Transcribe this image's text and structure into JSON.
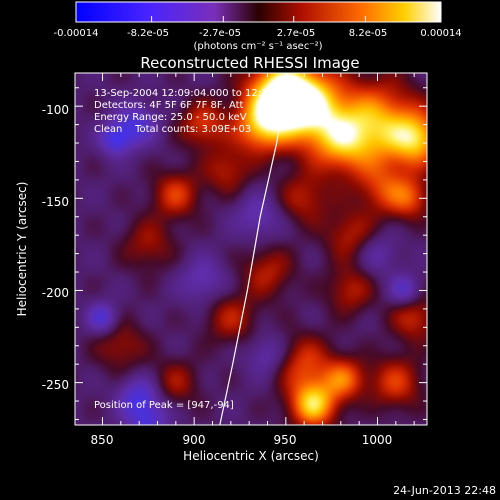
{
  "colorbar": {
    "tick_labels": [
      "-0.00014",
      "-8.2e-05",
      "-2.7e-05",
      "2.7e-05",
      "8.2e-05",
      "0.00014"
    ],
    "tick_values": [
      -0.00014,
      -8.2e-05,
      -2.7e-05,
      2.7e-05,
      8.2e-05,
      0.00014
    ],
    "unit_label": "(photons cm⁻² s⁻¹ asec⁻²)",
    "range": [
      -0.00014,
      0.00014
    ]
  },
  "chart_data": {
    "type": "heatmap",
    "title": "Reconstructed RHESSI Image",
    "xlabel": "Heliocentric X (arcsec)",
    "ylabel": "Heliocentric Y (arcsec)",
    "xlim": [
      835,
      1027
    ],
    "ylim": [
      -273,
      -82
    ],
    "x_ticks": [
      850,
      900,
      950,
      1000
    ],
    "x_tick_labels": [
      "850",
      "900",
      "950",
      "1000"
    ],
    "y_ticks": [
      -250,
      -200,
      -150,
      -100
    ],
    "y_tick_labels": [
      "-250",
      "-200",
      "-150",
      "-100"
    ],
    "sources": [
      {
        "x": 947,
        "y": -94,
        "amp": 1.0,
        "sigma": 13
      },
      {
        "x": 962,
        "y": -100,
        "amp": 0.85,
        "sigma": 14
      },
      {
        "x": 1000,
        "y": -110,
        "amp": 0.75,
        "sigma": 16
      },
      {
        "x": 1022,
        "y": -118,
        "amp": 0.7,
        "sigma": 10
      },
      {
        "x": 980,
        "y": -120,
        "amp": 0.55,
        "sigma": 12
      },
      {
        "x": 936,
        "y": -112,
        "amp": 0.6,
        "sigma": 10
      },
      {
        "x": 905,
        "y": -110,
        "amp": 0.45,
        "sigma": 9
      },
      {
        "x": 890,
        "y": -148,
        "amp": 0.45,
        "sigma": 9
      },
      {
        "x": 918,
        "y": -135,
        "amp": 0.35,
        "sigma": 9
      },
      {
        "x": 960,
        "y": -150,
        "amp": 0.35,
        "sigma": 10
      },
      {
        "x": 1003,
        "y": -145,
        "amp": 0.4,
        "sigma": 10
      },
      {
        "x": 1018,
        "y": -150,
        "amp": 0.45,
        "sigma": 8
      },
      {
        "x": 985,
        "y": -170,
        "amp": 0.35,
        "sigma": 10
      },
      {
        "x": 940,
        "y": -190,
        "amp": 0.35,
        "sigma": 10
      },
      {
        "x": 985,
        "y": -200,
        "amp": 0.35,
        "sigma": 9
      },
      {
        "x": 1020,
        "y": -215,
        "amp": 0.4,
        "sigma": 9
      },
      {
        "x": 920,
        "y": -215,
        "amp": 0.35,
        "sigma": 10
      },
      {
        "x": 960,
        "y": -240,
        "amp": 0.45,
        "sigma": 11
      },
      {
        "x": 965,
        "y": -262,
        "amp": 0.85,
        "sigma": 9
      },
      {
        "x": 982,
        "y": -248,
        "amp": 0.55,
        "sigma": 8
      },
      {
        "x": 1010,
        "y": -250,
        "amp": 0.45,
        "sigma": 10
      },
      {
        "x": 875,
        "y": -175,
        "amp": 0.3,
        "sigma": 10
      },
      {
        "x": 860,
        "y": -230,
        "amp": 0.3,
        "sigma": 10
      },
      {
        "x": 890,
        "y": -250,
        "amp": 0.3,
        "sigma": 9
      },
      {
        "x": 868,
        "y": -110,
        "amp": -0.45,
        "sigma": 8
      },
      {
        "x": 857,
        "y": -118,
        "amp": -0.5,
        "sigma": 6
      },
      {
        "x": 850,
        "y": -215,
        "amp": -0.45,
        "sigma": 6
      },
      {
        "x": 870,
        "y": -258,
        "amp": -0.45,
        "sigma": 8
      },
      {
        "x": 875,
        "y": -272,
        "amp": -0.4,
        "sigma": 8
      },
      {
        "x": 1015,
        "y": -200,
        "amp": -0.4,
        "sigma": 6
      },
      {
        "x": 935,
        "y": -160,
        "amp": -0.3,
        "sigma": 9
      },
      {
        "x": 905,
        "y": -195,
        "amp": -0.3,
        "sigma": 9
      },
      {
        "x": 940,
        "y": -235,
        "amp": -0.3,
        "sigma": 8
      },
      {
        "x": 1000,
        "y": -180,
        "amp": -0.25,
        "sigma": 8
      }
    ],
    "limb_curve": [
      [
        951,
        -82
      ],
      [
        945,
        -120
      ],
      [
        936,
        -160
      ],
      [
        929,
        -200
      ],
      [
        921,
        -240
      ],
      [
        914,
        -273
      ]
    ],
    "annotations": [
      "13-Sep-2004 12:09:04.000 to 12:12:08.000",
      "Detectors: 4F 5F 6F 7F 8F, Att",
      "Energy Range: 25.0 - 50.0 keV",
      "Clean    Total counts: 3.09E+03"
    ],
    "peak_label": "Position of Peak = [947,-94]",
    "peak": [
      947,
      -94
    ]
  },
  "footer": {
    "timestamp": "24-Jun-2013 22:48"
  }
}
